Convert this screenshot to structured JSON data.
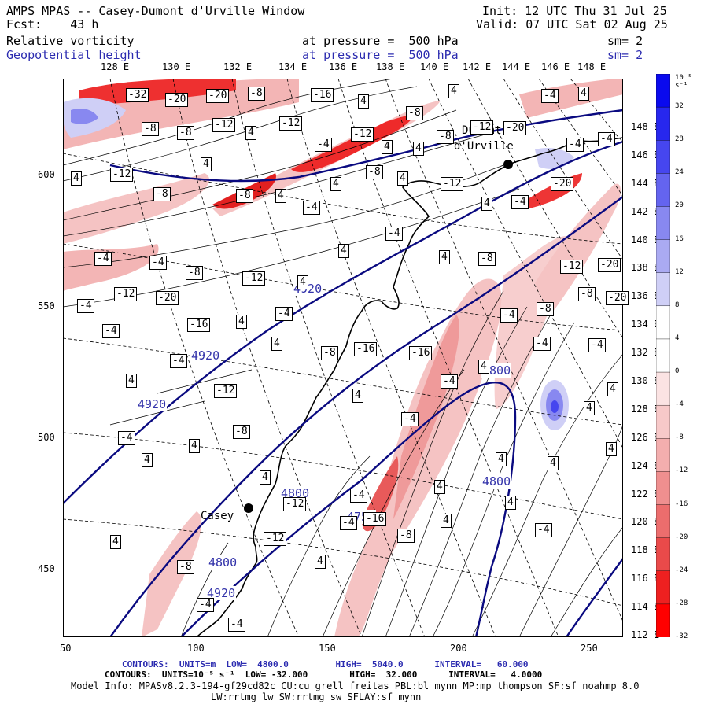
{
  "header": {
    "title": "AMPS MPAS -- Casey-Dumont d'Urville Window",
    "forecast": "Fcst:    43 h",
    "init": "Init: 12 UTC Thu 31 Jul 25",
    "valid": "Valid: 07 UTC Sat 02 Aug 25",
    "field1": {
      "name": "Relative vorticity",
      "level": "at pressure =  500 hPa",
      "smooth": "sm= 2"
    },
    "field2": {
      "name": "Geopotential height",
      "level": "at pressure =  500 hPa",
      "smooth": "sm= 2"
    }
  },
  "axes": {
    "lon_top": [
      "128 E",
      "130 E",
      "132 E",
      "134 E",
      "136 E",
      "138 E",
      "140 E",
      "142 E",
      "144 E",
      "146 E",
      "148 E"
    ],
    "lat_right": [
      "148 E",
      "146 E",
      "144 E",
      "142 E",
      "140 E",
      "138 E",
      "136 E",
      "134 E",
      "132 E",
      "130 E",
      "128 E",
      "126 E",
      "124 E",
      "122 E",
      "120 E",
      "118 E",
      "116 E",
      "114 E",
      "112 E"
    ],
    "y_ticks": [
      "600",
      "550",
      "500",
      "450"
    ],
    "x_ticks": [
      "50",
      "100",
      "150",
      "200",
      "250"
    ]
  },
  "places": [
    {
      "name": "Casey"
    },
    {
      "name": "Dumont"
    },
    {
      "name": "d'Urville"
    }
  ],
  "contour_labels": {
    "height": [
      "4920",
      "4920",
      "4920",
      "4920",
      "4800",
      "4800",
      "4800",
      "4800",
      "4754"
    ],
    "vorticity": [
      "-32",
      "-20",
      "-20",
      "-8",
      "-16",
      "4",
      "-8",
      "4",
      "-12",
      "-20",
      "-4",
      "4",
      "-8",
      "-8",
      "-12",
      "4",
      "-12",
      "-4",
      "-12",
      "4",
      "4",
      "-8",
      "-4",
      "-4",
      "4",
      "-12",
      "-8",
      "4",
      "-8",
      "4",
      "-4",
      "4",
      "-8",
      "4",
      "-12",
      "4",
      "-4",
      "-20",
      "-4",
      "-4",
      "-8",
      "-12",
      "4",
      "4",
      "-4",
      "4",
      "-8",
      "-12",
      "-20",
      "-8",
      "-4",
      "-12",
      "-20",
      "-16",
      "4",
      "-4",
      "-16",
      "-16",
      "-4",
      "-4",
      "-8",
      "-20",
      "-4",
      "4",
      "-4",
      "-12",
      "4",
      "-8",
      "4",
      "-4",
      "4",
      "-4",
      "-4",
      "4",
      "-4",
      "4",
      "4",
      "-8",
      "4",
      "-12",
      "-4",
      "-16",
      "4",
      "4",
      "4",
      "4",
      "4",
      "4",
      "-8",
      "-4",
      "-4",
      "-12",
      "4",
      "-4",
      "-8",
      "4",
      "4",
      "-4"
    ]
  },
  "colorbar": {
    "unit": "10⁻⁵ s⁻¹",
    "labels": [
      "32",
      "28",
      "24",
      "20",
      "16",
      "12",
      "8",
      "4",
      "0",
      "-4",
      "-8",
      "-12",
      "-16",
      "-20",
      "-24",
      "-28",
      "-32"
    ],
    "colors": [
      "#0a0aee",
      "#2727ee",
      "#4646ef",
      "#6464ef",
      "#8888f0",
      "#aaaaf2",
      "#cfcff6",
      "#ffffff",
      "#ffffff",
      "#fbe3e3",
      "#f7c9c9",
      "#f3aeae",
      "#ef8f8f",
      "#ec6d6d",
      "#ea4a4a",
      "#ee2020",
      "#ff0000"
    ]
  },
  "footer": {
    "line1": "CONTOURS:  UNITS=m  LOW=  4800.0         HIGH=  5040.0      INTERVAL=   60.000",
    "line2": "CONTOURS:  UNITS=10⁻⁵ s⁻¹  LOW= -32.000        HIGH=  32.000      INTERVAL=   4.0000",
    "line3": "Model Info: MPASv8.2.3-194-gf29cd82c CU:cu_grell_freitas PBL:bl_mynn MP:mp_thompson SF:sf_noahmp 8.0",
    "line4": "LW:rrtmg_lw SW:rrtmg_sw SFLAY:sf_mynn"
  }
}
